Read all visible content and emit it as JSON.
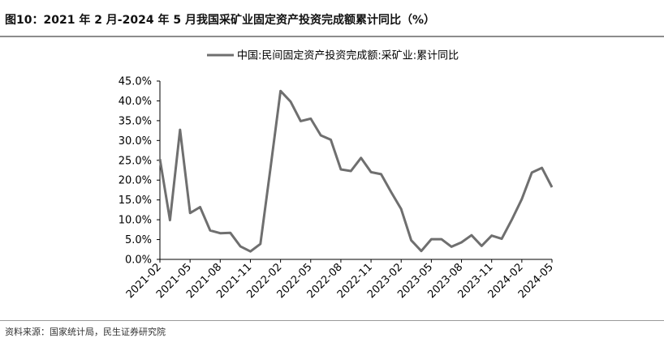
{
  "figure": {
    "title": "图10：2021 年 2 月-2024 年 5 月我国采矿业固定资产投资完成额累计同比（%）",
    "source": "资料来源：国家统计局，民生证券研究院"
  },
  "chart_data": {
    "type": "line",
    "title": "",
    "xlabel": "",
    "ylabel": "",
    "ylim": [
      0,
      45
    ],
    "y_ticks": [
      "0.0%",
      "5.0%",
      "10.0%",
      "15.0%",
      "20.0%",
      "25.0%",
      "30.0%",
      "35.0%",
      "40.0%",
      "45.0%"
    ],
    "y_tick_values": [
      0,
      5,
      10,
      15,
      20,
      25,
      30,
      35,
      40,
      45
    ],
    "x_ticks": [
      "2021-02",
      "2021-05",
      "2021-08",
      "2021-11",
      "2022-02",
      "2022-05",
      "2022-08",
      "2022-11",
      "2023-02",
      "2023-05",
      "2023-08",
      "2023-11",
      "2024-02",
      "2024-05"
    ],
    "legend_position": "top-center",
    "grid": false,
    "line_color": "#6f6f6f",
    "x": [
      "2021-02",
      "2021-03",
      "2021-04",
      "2021-05",
      "2021-06",
      "2021-07",
      "2021-08",
      "2021-09",
      "2021-10",
      "2021-11",
      "2021-12",
      "2022-01",
      "2022-02",
      "2022-03",
      "2022-04",
      "2022-05",
      "2022-06",
      "2022-07",
      "2022-08",
      "2022-09",
      "2022-10",
      "2022-11",
      "2022-12",
      "2023-01",
      "2023-02",
      "2023-03",
      "2023-04",
      "2023-05",
      "2023-06",
      "2023-07",
      "2023-08",
      "2023-09",
      "2023-10",
      "2023-11",
      "2023-12",
      "2024-01",
      "2024-02",
      "2024-03",
      "2024-04",
      "2024-05"
    ],
    "series": [
      {
        "name": "中国:民间固定资产投资完成额:采矿业:累计同比",
        "values": [
          25.3,
          9.9,
          32.7,
          11.7,
          13.2,
          7.3,
          6.6,
          6.7,
          3.3,
          2.0,
          3.9,
          23.0,
          42.5,
          39.8,
          34.9,
          35.5,
          31.3,
          30.2,
          22.7,
          22.3,
          25.6,
          22.0,
          21.5,
          17.0,
          12.7,
          4.8,
          2.1,
          5.1,
          5.1,
          3.2,
          4.3,
          6.1,
          3.4,
          6.0,
          5.2,
          10.0,
          15.2,
          21.9,
          23.1,
          18.2
        ]
      }
    ]
  }
}
